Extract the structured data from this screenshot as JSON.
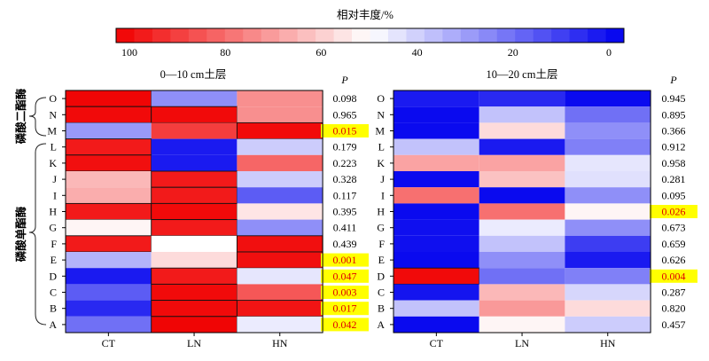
{
  "colorbar": {
    "title": "相对丰度/%",
    "ticks": [
      "100",
      "80",
      "60",
      "40",
      "20",
      "0"
    ],
    "min": 0,
    "max": 100,
    "high_color": "#f00000",
    "mid_color": "#ffffff",
    "low_color": "#0000ee"
  },
  "chart_data": [
    {
      "type": "heatmap",
      "title": "0—10 cm土层",
      "columns": [
        "CT",
        "LN",
        "HN"
      ],
      "rows": [
        "O",
        "N",
        "M",
        "L",
        "K",
        "J",
        "I",
        "H",
        "G",
        "F",
        "E",
        "D",
        "C",
        "B",
        "A"
      ],
      "values": [
        [
          99,
          28,
          72
        ],
        [
          98,
          98,
          72
        ],
        [
          30,
          88,
          98
        ],
        [
          95,
          5,
          40
        ],
        [
          97,
          5,
          80
        ],
        [
          64,
          95,
          40
        ],
        [
          66,
          95,
          18
        ],
        [
          95,
          98,
          55
        ],
        [
          52,
          95,
          28
        ],
        [
          95,
          50,
          97
        ],
        [
          35,
          57,
          97
        ],
        [
          5,
          95,
          45
        ],
        [
          18,
          98,
          83
        ],
        [
          8,
          98,
          96
        ],
        [
          22,
          99,
          46
        ]
      ],
      "p_label": "P",
      "p_values": [
        "0.098",
        "0.965",
        "0.015",
        "0.179",
        "0.223",
        "0.328",
        "0.117",
        "0.395",
        "0.411",
        "0.439",
        "0.001",
        "0.047",
        "0.003",
        "0.017",
        "0.042"
      ],
      "p_highlighted": [
        false,
        false,
        true,
        false,
        false,
        false,
        false,
        false,
        false,
        false,
        true,
        true,
        true,
        true,
        true
      ],
      "groups": [
        {
          "label": "磷酸二酯酶",
          "rows": [
            "O",
            "N",
            "M"
          ]
        },
        {
          "label": "磷酸单酯酶",
          "rows": [
            "L",
            "K",
            "J",
            "I",
            "H",
            "G",
            "F",
            "E",
            "D",
            "C",
            "B",
            "A"
          ]
        }
      ]
    },
    {
      "type": "heatmap",
      "title": "10—20 cm土层",
      "columns": [
        "CT",
        "LN",
        "HN"
      ],
      "rows": [
        "O",
        "N",
        "M",
        "L",
        "K",
        "J",
        "I",
        "H",
        "G",
        "F",
        "E",
        "D",
        "C",
        "B",
        "A"
      ],
      "values": [
        [
          5,
          8,
          2
        ],
        [
          2,
          38,
          22
        ],
        [
          2,
          57,
          28
        ],
        [
          38,
          5,
          25
        ],
        [
          68,
          68,
          45
        ],
        [
          2,
          62,
          44
        ],
        [
          78,
          2,
          28
        ],
        [
          2,
          78,
          52
        ],
        [
          3,
          46,
          28
        ],
        [
          3,
          38,
          12
        ],
        [
          2,
          28,
          5
        ],
        [
          98,
          22,
          25
        ],
        [
          4,
          64,
          42
        ],
        [
          38,
          70,
          57
        ],
        [
          2,
          52,
          40
        ]
      ],
      "p_label": "P",
      "p_values": [
        "0.945",
        "0.895",
        "0.366",
        "0.912",
        "0.958",
        "0.281",
        "0.095",
        "0.026",
        "0.673",
        "0.659",
        "0.626",
        "0.004",
        "0.287",
        "0.820",
        "0.457"
      ],
      "p_highlighted": [
        false,
        false,
        false,
        false,
        false,
        false,
        false,
        true,
        false,
        false,
        false,
        true,
        false,
        false,
        false
      ]
    }
  ]
}
